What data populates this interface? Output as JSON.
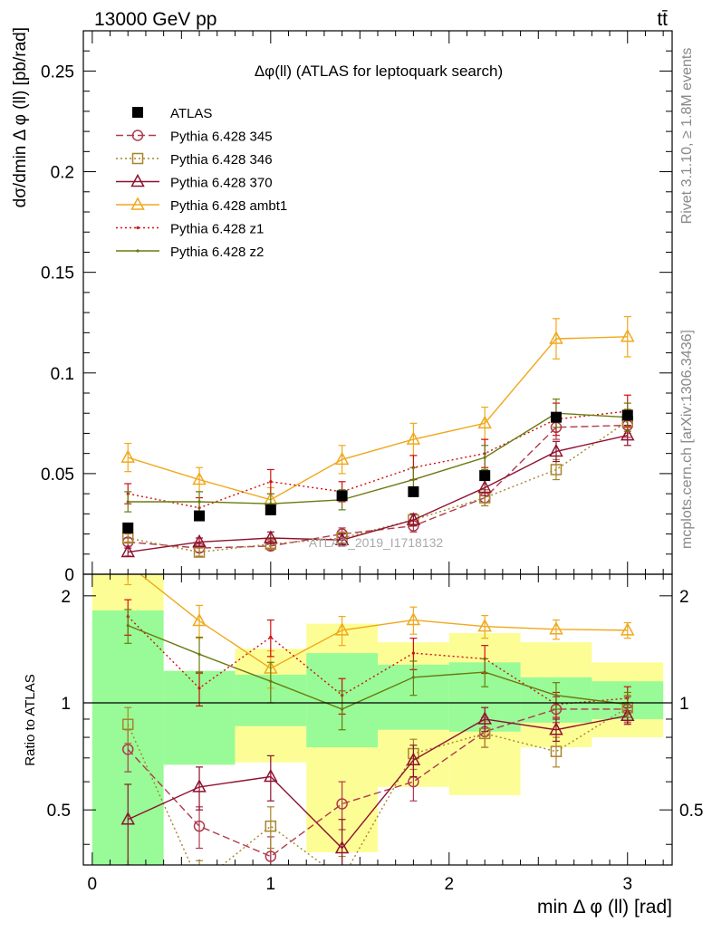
{
  "header": {
    "top_left": "13000 GeV pp",
    "top_right": "tt̄",
    "side_upper": "Rivet 3.1.10, ≥ 1.8M events",
    "side_lower": "mcplots.cern.ch [arXiv:1306.3436]"
  },
  "chart_data": {
    "type": "line",
    "title": "Δφ(ll) (ATLAS for leptoquark search)",
    "watermark": "ATLAS_2019_I1718132",
    "xlabel": "min Δ φ (ll) [rad]",
    "ylabel_main": "dσ/dmin Δ φ (ll) [pb/rad]",
    "ylabel_ratio": "Ratio to ATLAS",
    "xlim": [
      -0.05,
      3.25
    ],
    "ylim_main": [
      0,
      0.27
    ],
    "ylim_ratio": [
      0.35,
      2.3
    ],
    "xticks": [
      0,
      1,
      2,
      3
    ],
    "yticks_main": [
      0,
      0.05,
      0.1,
      0.15,
      0.2,
      0.25
    ],
    "yticks_main_labels": [
      "0",
      "0.05",
      "0.1",
      "0.15",
      "0.2",
      "0.25"
    ],
    "yticks_ratio": [
      0.5,
      1,
      2
    ],
    "yticks_ratio_labels": [
      "0.5",
      "1",
      "2"
    ],
    "x": [
      0.2,
      0.6,
      1.0,
      1.4,
      1.8,
      2.2,
      2.6,
      3.0
    ],
    "bin_edges": [
      0,
      0.4,
      0.8,
      1.2,
      1.6,
      2.0,
      2.4,
      2.8,
      3.2
    ],
    "legend_position": "upper-left",
    "data": {
      "name": "ATLAS",
      "values": [
        0.023,
        0.029,
        0.032,
        0.039,
        0.041,
        0.049,
        0.078,
        0.079
      ]
    },
    "ratio_bands": {
      "inner": [
        [
          0,
          1.82
        ],
        [
          0.67,
          1.23
        ],
        [
          0.86,
          1.2
        ],
        [
          0.75,
          1.38
        ],
        [
          0.84,
          1.28
        ],
        [
          0.83,
          1.3
        ],
        [
          0.88,
          1.18
        ],
        [
          0.9,
          1.15
        ]
      ],
      "outer": [
        [
          0,
          2.3
        ],
        [
          0.67,
          1.23
        ],
        [
          0.68,
          1.42
        ],
        [
          0.38,
          1.67
        ],
        [
          0.58,
          1.48
        ],
        [
          0.55,
          1.57
        ],
        [
          0.75,
          1.48
        ],
        [
          0.8,
          1.3
        ]
      ]
    },
    "series": [
      {
        "name": "Pythia 6.428 345",
        "color": "#b03a4e",
        "marker": "circle",
        "dash": "8,4",
        "values": [
          0.016,
          0.013,
          0.014,
          0.02,
          0.024,
          0.038,
          0.073,
          0.074
        ],
        "errors": [
          0.002,
          0.002,
          0.002,
          0.003,
          0.003,
          0.004,
          0.006,
          0.006
        ],
        "ratio": [
          0.74,
          0.45,
          0.37,
          0.52,
          0.6,
          0.83,
          0.96,
          0.96
        ],
        "ratio_errors": [
          0.1,
          0.06,
          0.05,
          0.08,
          0.07,
          0.08,
          0.08,
          0.08
        ]
      },
      {
        "name": "Pythia 6.428 346",
        "color": "#a8842c",
        "marker": "square",
        "dash": "2,3",
        "values": [
          0.018,
          0.011,
          0.015,
          0.018,
          0.027,
          0.038,
          0.052,
          0.076
        ],
        "errors": [
          0.002,
          0.002,
          0.002,
          0.003,
          0.003,
          0.004,
          0.005,
          0.006
        ],
        "ratio": [
          0.87,
          0.31,
          0.45,
          0.32,
          0.72,
          0.82,
          0.73,
          0.97
        ],
        "ratio_errors": [
          0.1,
          0.05,
          0.06,
          0.05,
          0.07,
          0.07,
          0.07,
          0.08
        ]
      },
      {
        "name": "Pythia 6.428 370",
        "color": "#8e1230",
        "marker": "triangle",
        "dash": "",
        "values": [
          0.011,
          0.016,
          0.018,
          0.017,
          0.027,
          0.043,
          0.061,
          0.069
        ],
        "errors": [
          0.002,
          0.002,
          0.003,
          0.003,
          0.003,
          0.004,
          0.005,
          0.005
        ],
        "ratio": [
          0.47,
          0.58,
          0.62,
          0.39,
          0.69,
          0.9,
          0.84,
          0.92
        ],
        "ratio_errors": [
          0.12,
          0.08,
          0.09,
          0.08,
          0.07,
          0.07,
          0.06,
          0.05
        ]
      },
      {
        "name": "Pythia 6.428 ambt1",
        "color": "#f0a81c",
        "marker": "triangle",
        "dash": "",
        "values": [
          0.058,
          0.047,
          0.037,
          0.057,
          0.067,
          0.075,
          0.117,
          0.118
        ],
        "errors": [
          0.007,
          0.006,
          0.006,
          0.007,
          0.008,
          0.008,
          0.01,
          0.01
        ],
        "ratio": [
          2.45,
          1.7,
          1.25,
          1.6,
          1.71,
          1.64,
          1.61,
          1.6
        ],
        "ratio_errors": [
          0.3,
          0.18,
          0.15,
          0.15,
          0.15,
          0.12,
          0.1,
          0.08
        ]
      },
      {
        "name": "Pythia 6.428 z1",
        "color": "#d01010",
        "marker": "dot",
        "dash": "2,3",
        "values": [
          0.04,
          0.033,
          0.046,
          0.041,
          0.053,
          0.06,
          0.077,
          0.081
        ],
        "errors": [
          0.005,
          0.005,
          0.006,
          0.005,
          0.006,
          0.007,
          0.008,
          0.008
        ],
        "ratio": [
          1.75,
          1.1,
          1.53,
          1.05,
          1.38,
          1.33,
          0.99,
          1.03
        ],
        "ratio_errors": [
          0.2,
          0.12,
          0.18,
          0.12,
          0.14,
          0.12,
          0.08,
          0.08
        ]
      },
      {
        "name": "Pythia 6.428 z2",
        "color": "#6b7a10",
        "marker": "dot",
        "dash": "",
        "values": [
          0.036,
          0.036,
          0.035,
          0.037,
          0.047,
          0.058,
          0.08,
          0.078
        ],
        "errors": [
          0.005,
          0.005,
          0.005,
          0.005,
          0.006,
          0.006,
          0.007,
          0.007
        ],
        "ratio": [
          1.65,
          1.37,
          1.15,
          0.96,
          1.18,
          1.22,
          1.05,
          0.99
        ],
        "ratio_errors": [
          0.18,
          0.16,
          0.15,
          0.12,
          0.13,
          0.11,
          0.09,
          0.08
        ]
      }
    ]
  }
}
